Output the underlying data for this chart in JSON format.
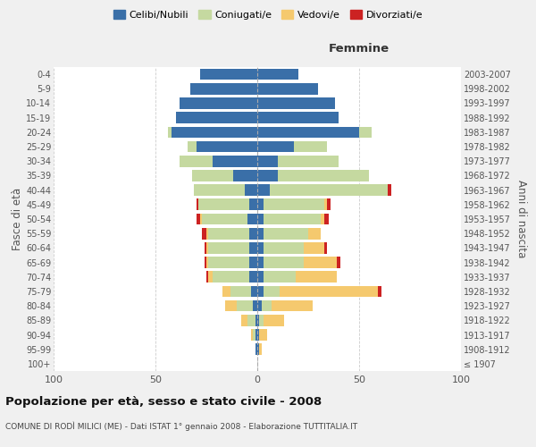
{
  "age_groups": [
    "100+",
    "95-99",
    "90-94",
    "85-89",
    "80-84",
    "75-79",
    "70-74",
    "65-69",
    "60-64",
    "55-59",
    "50-54",
    "45-49",
    "40-44",
    "35-39",
    "30-34",
    "25-29",
    "20-24",
    "15-19",
    "10-14",
    "5-9",
    "0-4"
  ],
  "birth_years": [
    "≤ 1907",
    "1908-1912",
    "1913-1917",
    "1918-1922",
    "1923-1927",
    "1928-1932",
    "1933-1937",
    "1938-1942",
    "1943-1947",
    "1948-1952",
    "1953-1957",
    "1958-1962",
    "1963-1967",
    "1968-1972",
    "1973-1977",
    "1978-1982",
    "1983-1987",
    "1988-1992",
    "1993-1997",
    "1998-2002",
    "2003-2007"
  ],
  "colors": {
    "celibi": "#3a6fa8",
    "coniugati": "#c5d9a0",
    "vedovi": "#f5c96e",
    "divorziati": "#cc2222"
  },
  "m_cel": [
    0,
    1,
    1,
    1,
    2,
    3,
    4,
    4,
    4,
    4,
    5,
    4,
    6,
    12,
    22,
    30,
    42,
    40,
    38,
    33,
    28
  ],
  "m_con": [
    0,
    0,
    1,
    4,
    8,
    10,
    18,
    20,
    20,
    20,
    22,
    25,
    25,
    20,
    16,
    4,
    2,
    0,
    0,
    0,
    0
  ],
  "m_ved": [
    0,
    0,
    1,
    3,
    6,
    4,
    2,
    1,
    1,
    1,
    1,
    0,
    0,
    0,
    0,
    0,
    0,
    0,
    0,
    0,
    0
  ],
  "m_div": [
    0,
    0,
    0,
    0,
    0,
    0,
    1,
    1,
    1,
    2,
    2,
    1,
    0,
    0,
    0,
    0,
    0,
    0,
    0,
    0,
    0
  ],
  "f_cel": [
    0,
    1,
    1,
    1,
    2,
    3,
    3,
    3,
    3,
    3,
    3,
    3,
    6,
    10,
    10,
    18,
    50,
    40,
    38,
    30,
    20
  ],
  "f_con": [
    0,
    0,
    0,
    2,
    5,
    8,
    16,
    20,
    20,
    22,
    28,
    30,
    58,
    45,
    30,
    16,
    6,
    0,
    0,
    0,
    0
  ],
  "f_ved": [
    0,
    1,
    4,
    10,
    20,
    48,
    20,
    16,
    10,
    6,
    2,
    1,
    0,
    0,
    0,
    0,
    0,
    0,
    0,
    0,
    0
  ],
  "f_div": [
    0,
    0,
    0,
    0,
    0,
    2,
    0,
    2,
    1,
    0,
    2,
    2,
    2,
    0,
    0,
    0,
    0,
    0,
    0,
    0,
    0
  ],
  "xlim": 100,
  "title": "Popolazione per età, sesso e stato civile - 2008",
  "subtitle": "COMUNE DI RODÌ MILICI (ME) - Dati ISTAT 1° gennaio 2008 - Elaborazione TUTTITALIA.IT",
  "ylabel_left": "Fasce di età",
  "ylabel_right": "Anni di nascita",
  "bg_color": "#f0f0f0",
  "plot_bg": "#ffffff",
  "grid_color": "#cccccc",
  "legend_labels": [
    "Celibi/Nubili",
    "Coniugati/e",
    "Vedovi/e",
    "Divorziati/e"
  ]
}
